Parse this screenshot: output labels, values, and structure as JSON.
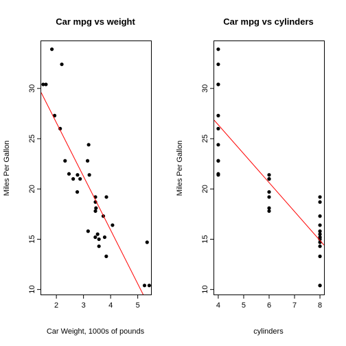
{
  "chart_data": [
    {
      "type": "scatter",
      "title": "Car mpg vs weight",
      "xlabel": "Car Weight, 1000s of pounds",
      "ylabel": "Miles Per Gallon",
      "xlim": [
        1.44,
        5.49
      ],
      "ylim": [
        9.5,
        34.7
      ],
      "xticks": [
        2,
        3,
        4,
        5
      ],
      "yticks": [
        10,
        15,
        20,
        25,
        30
      ],
      "grid": false,
      "points": [
        [
          2.62,
          21.0
        ],
        [
          2.875,
          21.0
        ],
        [
          2.32,
          22.8
        ],
        [
          3.215,
          21.4
        ],
        [
          3.44,
          18.7
        ],
        [
          3.46,
          18.1
        ],
        [
          3.57,
          14.3
        ],
        [
          3.19,
          24.4
        ],
        [
          3.15,
          22.8
        ],
        [
          3.44,
          19.2
        ],
        [
          3.44,
          17.8
        ],
        [
          4.07,
          16.4
        ],
        [
          3.73,
          17.3
        ],
        [
          3.78,
          15.2
        ],
        [
          5.25,
          10.4
        ],
        [
          5.424,
          10.4
        ],
        [
          5.345,
          14.7
        ],
        [
          2.2,
          32.4
        ],
        [
          1.615,
          30.4
        ],
        [
          1.835,
          33.9
        ],
        [
          2.465,
          21.5
        ],
        [
          3.52,
          15.5
        ],
        [
          3.435,
          15.2
        ],
        [
          3.84,
          13.3
        ],
        [
          3.845,
          19.2
        ],
        [
          1.935,
          27.3
        ],
        [
          2.14,
          26.0
        ],
        [
          1.513,
          30.4
        ],
        [
          3.17,
          15.8
        ],
        [
          2.77,
          19.7
        ],
        [
          3.57,
          15.0
        ],
        [
          2.78,
          21.4
        ]
      ],
      "fit_line": {
        "intercept": 37.285,
        "slope": -5.344,
        "color": "#ff0000"
      }
    },
    {
      "type": "scatter",
      "title": "Car mpg vs cylinders",
      "xlabel": "cylinders",
      "ylabel": "Miles Per Gallon",
      "xlim": [
        3.84,
        8.16
      ],
      "ylim": [
        9.5,
        34.7
      ],
      "xticks": [
        4,
        5,
        6,
        7,
        8
      ],
      "yticks": [
        10,
        15,
        20,
        25,
        30
      ],
      "grid": false,
      "points": [
        [
          6,
          21.0
        ],
        [
          6,
          21.0
        ],
        [
          4,
          22.8
        ],
        [
          6,
          21.4
        ],
        [
          8,
          18.7
        ],
        [
          6,
          18.1
        ],
        [
          8,
          14.3
        ],
        [
          4,
          24.4
        ],
        [
          4,
          22.8
        ],
        [
          6,
          19.2
        ],
        [
          6,
          17.8
        ],
        [
          8,
          16.4
        ],
        [
          8,
          17.3
        ],
        [
          8,
          15.2
        ],
        [
          8,
          10.4
        ],
        [
          8,
          10.4
        ],
        [
          8,
          14.7
        ],
        [
          4,
          32.4
        ],
        [
          4,
          30.4
        ],
        [
          4,
          33.9
        ],
        [
          4,
          21.5
        ],
        [
          8,
          15.5
        ],
        [
          8,
          15.2
        ],
        [
          8,
          13.3
        ],
        [
          8,
          19.2
        ],
        [
          4,
          27.3
        ],
        [
          4,
          26.0
        ],
        [
          4,
          30.4
        ],
        [
          8,
          15.8
        ],
        [
          6,
          19.7
        ],
        [
          8,
          15.0
        ],
        [
          4,
          21.4
        ]
      ],
      "fit_line": {
        "intercept": 37.885,
        "slope": -2.876,
        "color": "#ff0000"
      }
    }
  ],
  "colors": {
    "points": "#000000",
    "fit_line": "#ff0000",
    "background": "#ffffff"
  }
}
